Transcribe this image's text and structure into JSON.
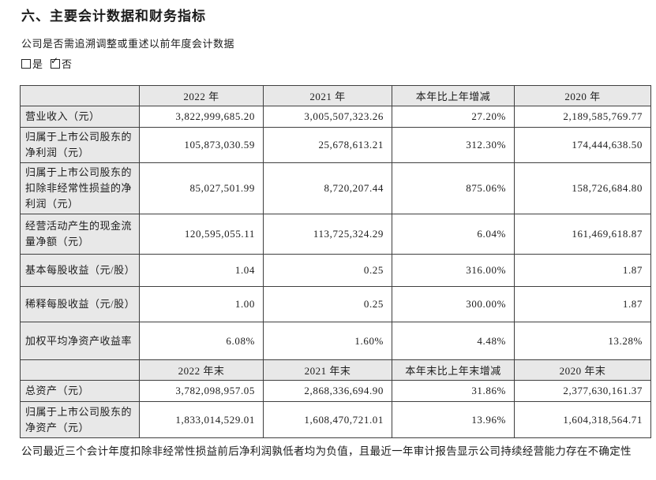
{
  "title": "六、主要会计数据和财务指标",
  "question": "公司是否需追溯调整或重述以前年度会计数据",
  "checkboxes": {
    "yes_label": "是",
    "no_label": "否",
    "checked_option": "否",
    "check_icon": "✓"
  },
  "table": {
    "sections": [
      {
        "headers": [
          "",
          "2022 年",
          "2021 年",
          "本年比上年增减",
          "2020 年"
        ],
        "rows": [
          {
            "label": "营业收入（元）",
            "values": [
              "3,822,999,685.20",
              "3,005,507,323.26",
              "27.20%",
              "2,189,585,769.77"
            ]
          },
          {
            "label": "归属于上市公司股东的净利润（元）",
            "values": [
              "105,873,030.59",
              "25,678,613.21",
              "312.30%",
              "174,444,638.50"
            ]
          },
          {
            "label": "归属于上市公司股东的扣除非经常性损益的净利润（元）",
            "values": [
              "85,027,501.99",
              "8,720,207.44",
              "875.06%",
              "158,726,684.80"
            ]
          },
          {
            "label": "经营活动产生的现金流量净额（元）",
            "values": [
              "120,595,055.11",
              "113,725,324.29",
              "6.04%",
              "161,469,618.87"
            ]
          },
          {
            "label": "基本每股收益（元/股）",
            "values": [
              "1.04",
              "0.25",
              "316.00%",
              "1.87"
            ]
          },
          {
            "label": "稀释每股收益（元/股）",
            "values": [
              "1.00",
              "0.25",
              "300.00%",
              "1.87"
            ]
          },
          {
            "label": "加权平均净资产收益率",
            "values": [
              "6.08%",
              "1.60%",
              "4.48%",
              "13.28%"
            ]
          }
        ]
      },
      {
        "headers": [
          "",
          "2022 年末",
          "2021 年末",
          "本年末比上年末增减",
          "2020 年末"
        ],
        "rows": [
          {
            "label": "总资产（元）",
            "values": [
              "3,782,098,957.05",
              "2,868,336,694.90",
              "31.86%",
              "2,377,630,161.37"
            ]
          },
          {
            "label": "归属于上市公司股东的净资产（元）",
            "values": [
              "1,833,014,529.01",
              "1,608,470,721.01",
              "13.96%",
              "1,604,318,564.71"
            ]
          }
        ]
      }
    ]
  },
  "footnote": "公司最近三个会计年度扣除非经常性损益前后净利润孰低者均为负值，且最近一年审计报告显示公司持续经营能力存在不确定性",
  "colors": {
    "header_bg": "#e8e8e8",
    "border": "#3f3f3f",
    "text": "#1c1c1c"
  }
}
